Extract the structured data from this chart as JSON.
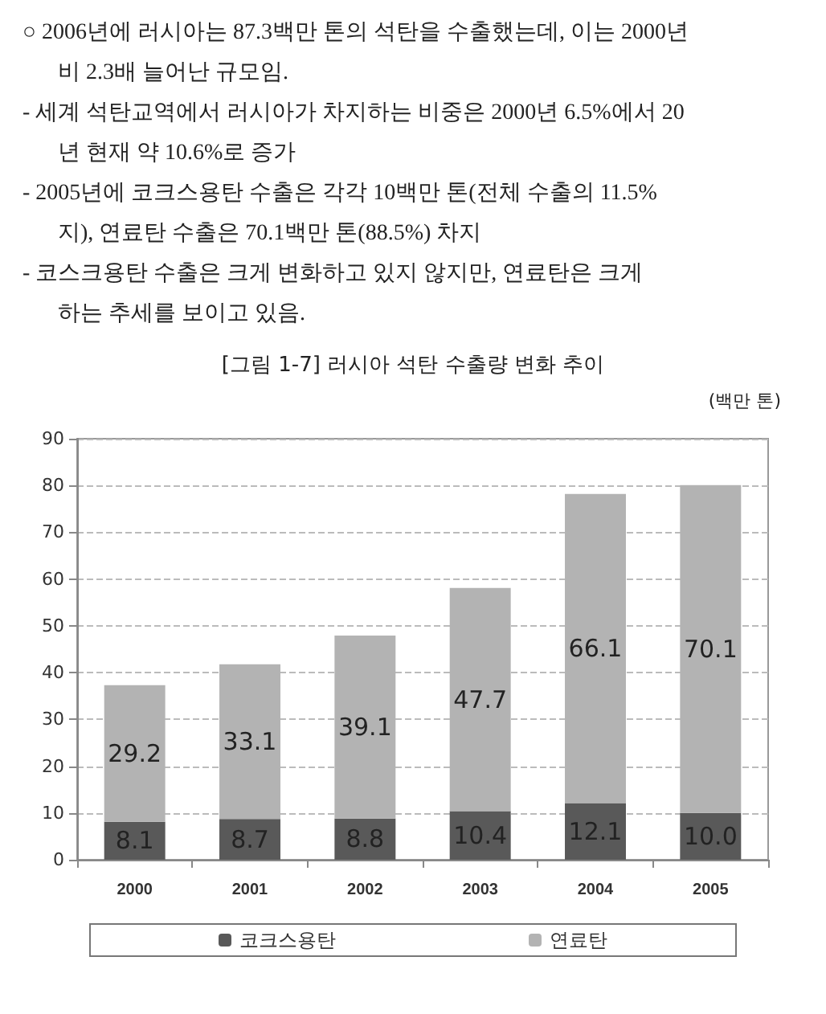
{
  "chart_data": {
    "type": "bar",
    "title": "[그림 1-7] 러시아 석탄 수출량 변화 추이",
    "ylabel": "(백만 톤)",
    "annotations": [
      "○ 2006년에 러시아는 87.3백만 톤의 석탄을 수출했는데, 이는 2000년",
      "비 2.3배 늘어난 규모임.",
      "- 세계 석탄교역에서 러시아가 차지하는 비중은 2000년 6.5%에서 20",
      "년 현재 약 10.6%로 증가",
      "- 2005년에 코크스용탄 수출은 각각 10백만 톤(전체 수출의 11.5%",
      "지), 연료탄 수출은 70.1백만 톤(88.5%) 차지",
      "- 코스크용탄 수출은 크게 변화하고 있지 않지만, 연료탄은 크게",
      "하는 추세를 보이고 있음."
    ],
    "categories": [
      "2000",
      "2001",
      "2002",
      "2003",
      "2004",
      "2005"
    ],
    "stacked": true,
    "series": [
      {
        "name": "코크스용탄",
        "color": "#595959",
        "values": [
          8.1,
          8.7,
          8.8,
          10.4,
          12.1,
          10.0
        ],
        "value_labels": [
          "8.1",
          "8.7",
          "8.8",
          "10.4",
          "12.1",
          "10.0"
        ]
      },
      {
        "name": "연료탄",
        "color": "#b3b3b3",
        "values": [
          29.2,
          33.1,
          39.1,
          47.7,
          66.1,
          70.1
        ],
        "value_labels": [
          "29.2",
          "33.1",
          "39.1",
          "47.7",
          "66.1",
          "70.1"
        ]
      }
    ],
    "ylim": [
      0,
      90
    ],
    "yticks": [
      0,
      10,
      20,
      30,
      40,
      50,
      60,
      70,
      80,
      90
    ],
    "grid": "y",
    "legend": "bottom"
  }
}
